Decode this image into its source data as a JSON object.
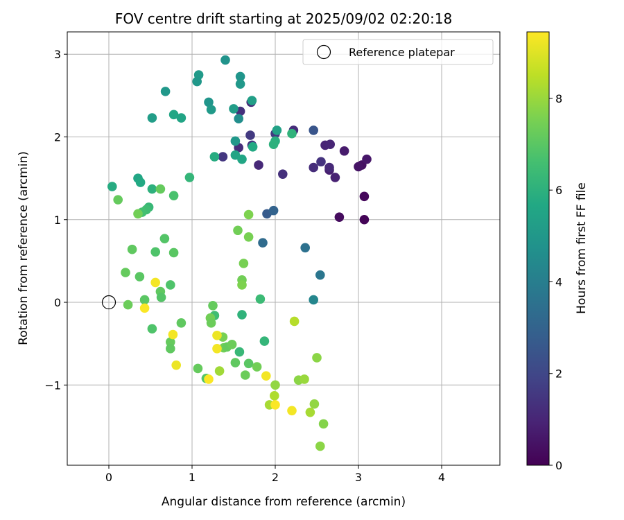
{
  "chart_data": {
    "type": "scatter",
    "title": "FOV centre drift starting at 2025/09/02 02:20:18",
    "xlabel": "Angular distance from reference (arcmin)",
    "ylabel": "Rotation from reference (arcmin)",
    "xlim": [
      -0.5,
      4.7
    ],
    "ylim": [
      -1.97,
      3.27
    ],
    "xticks": [
      0,
      1,
      2,
      3,
      4
    ],
    "yticks": [
      -1,
      0,
      1,
      2,
      3
    ],
    "xtick_labels": [
      "0",
      "1",
      "2",
      "3",
      "4"
    ],
    "ytick_labels": [
      "−1",
      "0",
      "1",
      "2",
      "3"
    ],
    "grid": true,
    "legend": {
      "position": "upper-right",
      "label": "Reference platepar"
    },
    "reference_point": {
      "x": 0,
      "y": 0
    },
    "colorbar": {
      "label": "Hours from first FF file",
      "min": 0,
      "max": 9.45,
      "ticks": [
        0,
        2,
        4,
        6,
        8
      ],
      "tick_labels": [
        "0",
        "2",
        "4",
        "6",
        "8"
      ],
      "colormap": "viridis"
    },
    "points": [
      [
        3.07,
        1.0,
        0.1
      ],
      [
        3.07,
        1.28,
        0.2
      ],
      [
        2.77,
        1.03,
        0.3
      ],
      [
        3.04,
        1.66,
        0.4
      ],
      [
        3.0,
        1.64,
        0.5
      ],
      [
        3.1,
        1.73,
        0.6
      ],
      [
        2.83,
        1.83,
        0.7
      ],
      [
        2.65,
        1.6,
        0.8
      ],
      [
        2.72,
        1.51,
        0.9
      ],
      [
        2.6,
        1.9,
        0.95
      ],
      [
        2.66,
        1.91,
        1.0
      ],
      [
        2.65,
        1.63,
        1.1
      ],
      [
        2.46,
        1.63,
        1.2
      ],
      [
        2.55,
        1.7,
        1.4
      ],
      [
        2.09,
        1.55,
        1.3
      ],
      [
        2.22,
        2.08,
        1.2
      ],
      [
        1.8,
        1.66,
        1.1
      ],
      [
        1.56,
        1.87,
        1.2
      ],
      [
        1.58,
        2.31,
        1.3
      ],
      [
        1.71,
        2.42,
        1.2
      ],
      [
        1.72,
        1.9,
        1.5
      ],
      [
        1.7,
        2.02,
        1.6
      ],
      [
        1.37,
        1.76,
        1.5
      ],
      [
        2.0,
        2.04,
        1.6
      ],
      [
        2.46,
        2.08,
        2.5
      ],
      [
        1.9,
        1.07,
        2.7
      ],
      [
        1.98,
        1.11,
        3.0
      ],
      [
        1.85,
        0.72,
        3.3
      ],
      [
        2.36,
        0.66,
        3.5
      ],
      [
        2.54,
        0.33,
        3.7
      ],
      [
        2.46,
        0.03,
        4.3
      ],
      [
        1.56,
        2.22,
        4.6
      ],
      [
        1.4,
        2.93,
        4.8
      ],
      [
        1.58,
        2.73,
        4.9
      ],
      [
        1.58,
        2.64,
        5.0
      ],
      [
        1.08,
        2.75,
        5.1
      ],
      [
        1.06,
        2.67,
        5.0
      ],
      [
        1.2,
        2.42,
        4.9
      ],
      [
        1.23,
        2.33,
        5.1
      ],
      [
        1.5,
        2.34,
        5.2
      ],
      [
        1.72,
        2.44,
        5.3
      ],
      [
        0.68,
        2.55,
        5.0
      ],
      [
        0.52,
        2.23,
        5.2
      ],
      [
        0.78,
        2.27,
        5.6
      ],
      [
        0.87,
        2.23,
        5.5
      ],
      [
        1.52,
        1.95,
        5.0
      ],
      [
        1.52,
        1.78,
        5.5
      ],
      [
        1.6,
        1.73,
        5.6
      ],
      [
        1.73,
        1.88,
        5.7
      ],
      [
        1.27,
        1.76,
        5.8
      ],
      [
        2.02,
        2.08,
        5.4
      ],
      [
        2.0,
        1.95,
        5.9
      ],
      [
        1.98,
        1.91,
        6.0
      ],
      [
        2.2,
        2.04,
        6.1
      ],
      [
        0.35,
        1.5,
        5.6
      ],
      [
        0.38,
        1.45,
        5.7
      ],
      [
        0.04,
        1.4,
        5.8
      ],
      [
        0.52,
        1.37,
        6.0
      ],
      [
        0.97,
        1.51,
        6.2
      ],
      [
        0.48,
        1.15,
        6.3
      ],
      [
        0.45,
        1.12,
        6.5
      ],
      [
        0.4,
        1.09,
        6.6
      ],
      [
        1.6,
        -0.15,
        6.1
      ],
      [
        1.82,
        0.04,
        6.4
      ],
      [
        1.87,
        -0.47,
        6.2
      ],
      [
        1.57,
        -0.6,
        6.3
      ],
      [
        1.27,
        -0.16,
        6.5
      ],
      [
        0.62,
        1.37,
        7.2
      ],
      [
        0.35,
        1.07,
        7.4
      ],
      [
        0.78,
        1.29,
        6.7
      ],
      [
        0.11,
        1.24,
        7.2
      ],
      [
        0.28,
        0.64,
        7.1
      ],
      [
        0.56,
        0.61,
        6.8
      ],
      [
        0.67,
        0.77,
        6.9
      ],
      [
        0.78,
        0.6,
        7.0
      ],
      [
        0.2,
        0.36,
        7.2
      ],
      [
        0.37,
        0.31,
        7.0
      ],
      [
        0.74,
        0.21,
        6.8
      ],
      [
        0.62,
        0.13,
        7.1
      ],
      [
        0.63,
        0.06,
        6.9
      ],
      [
        0.43,
        0.03,
        7.0
      ],
      [
        0.23,
        -0.03,
        7.3
      ],
      [
        0.52,
        -0.32,
        6.8
      ],
      [
        0.87,
        -0.25,
        7.1
      ],
      [
        0.74,
        -0.48,
        7.2
      ],
      [
        0.74,
        -0.56,
        7.1
      ],
      [
        1.07,
        -0.8,
        7.2
      ],
      [
        1.17,
        -0.92,
        6.9
      ],
      [
        1.25,
        -0.04,
        7.2
      ],
      [
        1.22,
        -0.19,
        7.4
      ],
      [
        1.23,
        -0.25,
        7.3
      ],
      [
        1.37,
        -0.42,
        7.5
      ],
      [
        1.38,
        -0.55,
        7.4
      ],
      [
        1.42,
        -0.54,
        7.2
      ],
      [
        1.48,
        -0.51,
        7.3
      ],
      [
        1.52,
        -0.73,
        7.1
      ],
      [
        1.64,
        -0.88,
        7.3
      ],
      [
        1.68,
        -0.74,
        7.0
      ],
      [
        1.78,
        -0.78,
        7.4
      ],
      [
        1.55,
        0.87,
        7.4
      ],
      [
        1.68,
        1.06,
        7.6
      ],
      [
        1.68,
        0.79,
        7.5
      ],
      [
        1.62,
        0.47,
        7.5
      ],
      [
        1.6,
        0.27,
        7.4
      ],
      [
        1.6,
        0.21,
        7.6
      ],
      [
        2.23,
        -0.23,
        8.4
      ],
      [
        2.5,
        -0.67,
        7.8
      ],
      [
        1.33,
        -0.83,
        8.1
      ],
      [
        1.93,
        -1.24,
        8.2
      ],
      [
        1.99,
        -1.13,
        8.3
      ],
      [
        2.0,
        -1.0,
        7.9
      ],
      [
        2.28,
        -0.94,
        7.8
      ],
      [
        2.35,
        -0.93,
        8.0
      ],
      [
        2.47,
        -1.23,
        7.9
      ],
      [
        2.42,
        -1.33,
        8.2
      ],
      [
        2.58,
        -1.47,
        7.7
      ],
      [
        2.54,
        -1.74,
        7.8
      ],
      [
        0.77,
        -0.39,
        9.3
      ],
      [
        0.81,
        -0.76,
        9.2
      ],
      [
        0.56,
        0.24,
        9.3
      ],
      [
        0.43,
        -0.07,
        9.4
      ],
      [
        1.2,
        -0.93,
        9.4
      ],
      [
        1.3,
        -0.4,
        9.2
      ],
      [
        1.3,
        -0.56,
        9.3
      ],
      [
        1.89,
        -0.89,
        9.3
      ],
      [
        2.0,
        -1.24,
        9.4
      ],
      [
        2.2,
        -1.31,
        9.3
      ]
    ]
  }
}
